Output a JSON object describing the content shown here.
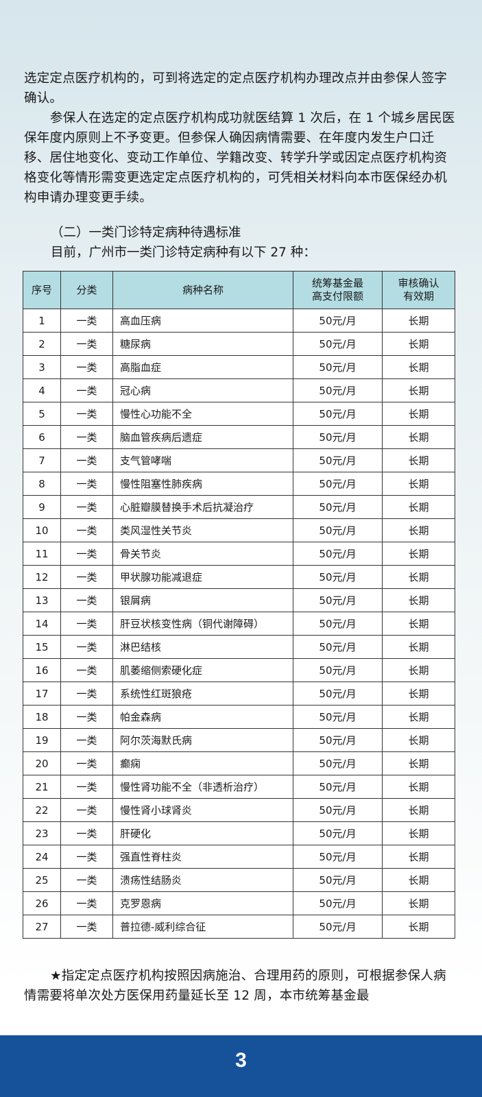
{
  "intro_paragraphs": [
    "选定定点医疗机构的，可到将选定的定点医疗机构办理改点并由参保人签字确认。",
    "参保人在选定的定点医疗机构成功就医结算 1 次后，在 1 个城乡居民医保年度内原则上不予变更。但参保人确因病情需要、在年度内发生户口迁移、居住地变化、变动工作单位、学籍改变、转学升学或因定点医疗机构资格变化等情形需变更选定定点医疗机构的，可凭相关材料向本市医保经办机构申请办理变更手续。"
  ],
  "section_heading": "（二）一类门诊特定病种待遇标准",
  "section_intro": "目前，广州市一类门诊特定病种有以下 27 种：",
  "table": {
    "header_color": "#b3dde3",
    "columns": [
      "序号",
      "分类",
      "病种名称",
      "统筹基金最高支付限额",
      "审核确认有效期"
    ],
    "rows": [
      [
        "1",
        "一类",
        "高血压病",
        "50元/月",
        "长期"
      ],
      [
        "2",
        "一类",
        "糖尿病",
        "50元/月",
        "长期"
      ],
      [
        "3",
        "一类",
        "高脂血症",
        "50元/月",
        "长期"
      ],
      [
        "4",
        "一类",
        "冠心病",
        "50元/月",
        "长期"
      ],
      [
        "5",
        "一类",
        "慢性心功能不全",
        "50元/月",
        "长期"
      ],
      [
        "6",
        "一类",
        "脑血管疾病后遗症",
        "50元/月",
        "长期"
      ],
      [
        "7",
        "一类",
        "支气管哮喘",
        "50元/月",
        "长期"
      ],
      [
        "8",
        "一类",
        "慢性阻塞性肺疾病",
        "50元/月",
        "长期"
      ],
      [
        "9",
        "一类",
        "心脏瓣膜替换手术后抗凝治疗",
        "50元/月",
        "长期"
      ],
      [
        "10",
        "一类",
        "类风湿性关节炎",
        "50元/月",
        "长期"
      ],
      [
        "11",
        "一类",
        "骨关节炎",
        "50元/月",
        "长期"
      ],
      [
        "12",
        "一类",
        "甲状腺功能减退症",
        "50元/月",
        "长期"
      ],
      [
        "13",
        "一类",
        "银屑病",
        "50元/月",
        "长期"
      ],
      [
        "14",
        "一类",
        "肝豆状核变性病（铜代谢障碍）",
        "50元/月",
        "长期"
      ],
      [
        "15",
        "一类",
        "淋巴结核",
        "50元/月",
        "长期"
      ],
      [
        "16",
        "一类",
        "肌萎缩侧索硬化症",
        "50元/月",
        "长期"
      ],
      [
        "17",
        "一类",
        "系统性红斑狼疮",
        "50元/月",
        "长期"
      ],
      [
        "18",
        "一类",
        "帕金森病",
        "50元/月",
        "长期"
      ],
      [
        "19",
        "一类",
        "阿尔茨海默氏病",
        "50元/月",
        "长期"
      ],
      [
        "20",
        "一类",
        "癫痫",
        "50元/月",
        "长期"
      ],
      [
        "21",
        "一类",
        "慢性肾功能不全（非透析治疗）",
        "50元/月",
        "长期"
      ],
      [
        "22",
        "一类",
        "慢性肾小球肾炎",
        "50元/月",
        "长期"
      ],
      [
        "23",
        "一类",
        "肝硬化",
        "50元/月",
        "长期"
      ],
      [
        "24",
        "一类",
        "强直性脊柱炎",
        "50元/月",
        "长期"
      ],
      [
        "25",
        "一类",
        "溃疡性结肠炎",
        "50元/月",
        "长期"
      ],
      [
        "26",
        "一类",
        "克罗恩病",
        "50元/月",
        "长期"
      ],
      [
        "27",
        "一类",
        "普拉德-威利综合征",
        "50元/月",
        "长期"
      ]
    ]
  },
  "note": "★指定定点医疗机构按照因病施治、合理用药的原则，可根据参保人病情需要将单次处方医保用药量延长至 12 周，本市统筹基金最",
  "footer": {
    "page_number": "3",
    "color": "#16529a"
  }
}
